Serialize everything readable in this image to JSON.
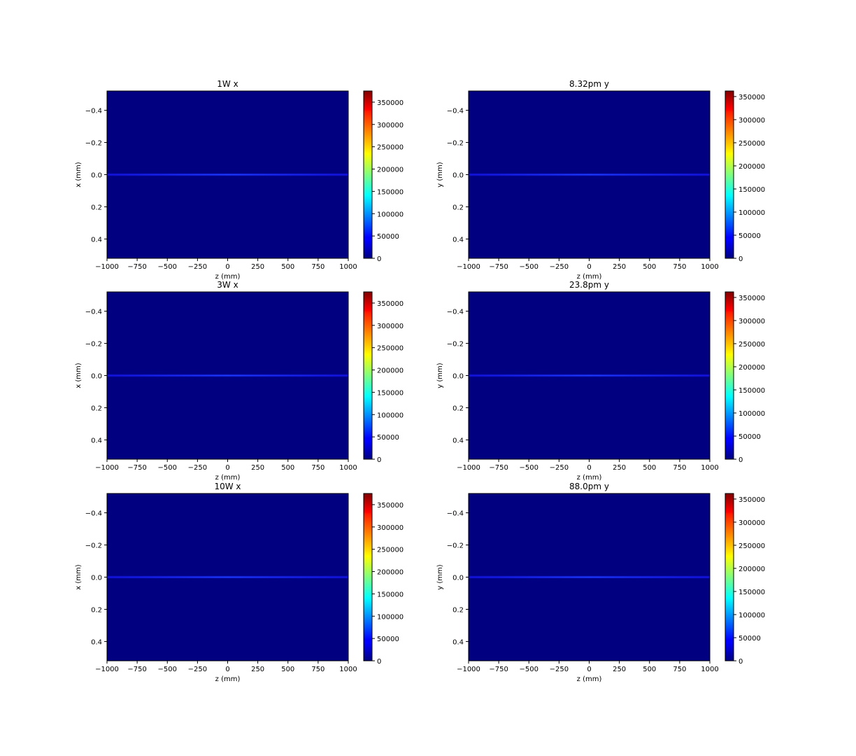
{
  "figure": {
    "colormap": "jet",
    "heatmap_background": "#000080",
    "beam_line_color": "#1414e6"
  },
  "chart_data": [
    {
      "type": "heatmap",
      "title": "1W x",
      "xlabel": "z (mm)",
      "ylabel": "x (mm)",
      "xlim": [
        -1000,
        1000
      ],
      "ylim": [
        0.52,
        -0.52
      ],
      "xticks": [
        -1000,
        -750,
        -500,
        -250,
        0,
        250,
        500,
        750,
        1000
      ],
      "xtick_labels": [
        "−1000",
        "−750",
        "−500",
        "−250",
        "0",
        "250",
        "500",
        "750",
        "1000"
      ],
      "yticks": [
        -0.4,
        -0.2,
        0.0,
        0.2,
        0.4
      ],
      "ytick_labels": [
        "−0.4",
        "−0.2",
        "0.0",
        "0.2",
        "0.4"
      ],
      "beam_center": 0.0,
      "colorbar": {
        "min": 0,
        "max": 375000,
        "ticks": [
          0,
          50000,
          100000,
          150000,
          200000,
          250000,
          300000,
          350000
        ],
        "tick_labels": [
          "0",
          "50000",
          "100000",
          "150000",
          "200000",
          "250000",
          "300000",
          "350000"
        ]
      }
    },
    {
      "type": "heatmap",
      "title": "8.32pm y",
      "xlabel": "z (mm)",
      "ylabel": "y (mm)",
      "xlim": [
        -1000,
        1000
      ],
      "ylim": [
        0.52,
        -0.52
      ],
      "xticks": [
        -1000,
        -750,
        -500,
        -250,
        0,
        250,
        500,
        750,
        1000
      ],
      "xtick_labels": [
        "−1000",
        "−750",
        "−500",
        "−250",
        "0",
        "250",
        "500",
        "750",
        "1000"
      ],
      "yticks": [
        -0.4,
        -0.2,
        0.0,
        0.2,
        0.4
      ],
      "ytick_labels": [
        "−0.4",
        "−0.2",
        "0.0",
        "0.2",
        "0.4"
      ],
      "beam_center": 0.0,
      "colorbar": {
        "min": 0,
        "max": 362000,
        "ticks": [
          0,
          50000,
          100000,
          150000,
          200000,
          250000,
          300000,
          350000
        ],
        "tick_labels": [
          "0",
          "50000",
          "100000",
          "150000",
          "200000",
          "250000",
          "300000",
          "350000"
        ]
      }
    },
    {
      "type": "heatmap",
      "title": "3W x",
      "xlabel": "z (mm)",
      "ylabel": "x (mm)",
      "xlim": [
        -1000,
        1000
      ],
      "ylim": [
        0.52,
        -0.52
      ],
      "xticks": [
        -1000,
        -750,
        -500,
        -250,
        0,
        250,
        500,
        750,
        1000
      ],
      "xtick_labels": [
        "−1000",
        "−750",
        "−500",
        "−250",
        "0",
        "250",
        "500",
        "750",
        "1000"
      ],
      "yticks": [
        -0.4,
        -0.2,
        0.0,
        0.2,
        0.4
      ],
      "ytick_labels": [
        "−0.4",
        "−0.2",
        "0.0",
        "0.2",
        "0.4"
      ],
      "beam_center": 0.0,
      "colorbar": {
        "min": 0,
        "max": 375000,
        "ticks": [
          0,
          50000,
          100000,
          150000,
          200000,
          250000,
          300000,
          350000
        ],
        "tick_labels": [
          "0",
          "50000",
          "100000",
          "150000",
          "200000",
          "250000",
          "300000",
          "350000"
        ]
      }
    },
    {
      "type": "heatmap",
      "title": "23.8pm y",
      "xlabel": "z (mm)",
      "ylabel": "y (mm)",
      "xlim": [
        -1000,
        1000
      ],
      "ylim": [
        0.52,
        -0.52
      ],
      "xticks": [
        -1000,
        -750,
        -500,
        -250,
        0,
        250,
        500,
        750,
        1000
      ],
      "xtick_labels": [
        "−1000",
        "−750",
        "−500",
        "−250",
        "0",
        "250",
        "500",
        "750",
        "1000"
      ],
      "yticks": [
        -0.4,
        -0.2,
        0.0,
        0.2,
        0.4
      ],
      "ytick_labels": [
        "−0.4",
        "−0.2",
        "0.0",
        "0.2",
        "0.4"
      ],
      "beam_center": 0.0,
      "colorbar": {
        "min": 0,
        "max": 362000,
        "ticks": [
          0,
          50000,
          100000,
          150000,
          200000,
          250000,
          300000,
          350000
        ],
        "tick_labels": [
          "0",
          "50000",
          "100000",
          "150000",
          "200000",
          "250000",
          "300000",
          "350000"
        ]
      }
    },
    {
      "type": "heatmap",
      "title": "10W x",
      "xlabel": "z (mm)",
      "ylabel": "x (mm)",
      "xlim": [
        -1000,
        1000
      ],
      "ylim": [
        0.52,
        -0.52
      ],
      "xticks": [
        -1000,
        -750,
        -500,
        -250,
        0,
        250,
        500,
        750,
        1000
      ],
      "xtick_labels": [
        "−1000",
        "−750",
        "−500",
        "−250",
        "0",
        "250",
        "500",
        "750",
        "1000"
      ],
      "yticks": [
        -0.4,
        -0.2,
        0.0,
        0.2,
        0.4
      ],
      "ytick_labels": [
        "−0.4",
        "−0.2",
        "0.0",
        "0.2",
        "0.4"
      ],
      "beam_center": 0.0,
      "colorbar": {
        "min": 0,
        "max": 375000,
        "ticks": [
          0,
          50000,
          100000,
          150000,
          200000,
          250000,
          300000,
          350000
        ],
        "tick_labels": [
          "0",
          "50000",
          "100000",
          "150000",
          "200000",
          "250000",
          "300000",
          "350000"
        ]
      }
    },
    {
      "type": "heatmap",
      "title": "88.0pm y",
      "xlabel": "z (mm)",
      "ylabel": "y (mm)",
      "xlim": [
        -1000,
        1000
      ],
      "ylim": [
        0.52,
        -0.52
      ],
      "xticks": [
        -1000,
        -750,
        -500,
        -250,
        0,
        250,
        500,
        750,
        1000
      ],
      "xtick_labels": [
        "−1000",
        "−750",
        "−500",
        "−250",
        "0",
        "250",
        "500",
        "750",
        "1000"
      ],
      "yticks": [
        -0.4,
        -0.2,
        0.0,
        0.2,
        0.4
      ],
      "ytick_labels": [
        "−0.4",
        "−0.2",
        "0.0",
        "0.2",
        "0.4"
      ],
      "beam_center": 0.0,
      "colorbar": {
        "min": 0,
        "max": 362000,
        "ticks": [
          0,
          50000,
          100000,
          150000,
          200000,
          250000,
          300000,
          350000
        ],
        "tick_labels": [
          "0",
          "50000",
          "100000",
          "150000",
          "200000",
          "250000",
          "300000",
          "350000"
        ]
      }
    }
  ]
}
